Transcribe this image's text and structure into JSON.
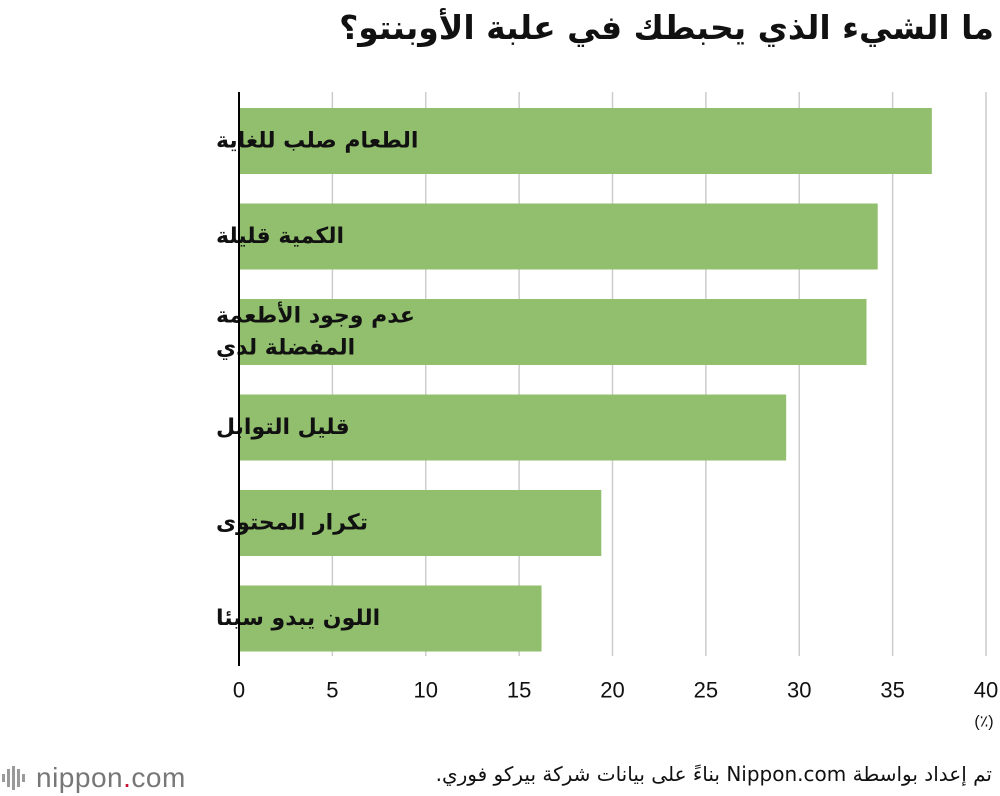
{
  "chart_data": {
    "type": "bar",
    "orientation": "horizontal",
    "title": "ما الشيء الذي يحبطك في علبة الأوبنتو؟",
    "categories": [
      [
        "الطعام صلب للغاية"
      ],
      [
        "الكمية قليلة"
      ],
      [
        "عدم وجود الأطعمة",
        "المفضلة لدي"
      ],
      [
        "قليل التوابل"
      ],
      [
        "تكرار المحتوى"
      ],
      [
        "اللون يبدو سيئا"
      ]
    ],
    "values": [
      37.1,
      34.2,
      33.6,
      29.3,
      19.4,
      16.2
    ],
    "xlim": [
      0,
      40
    ],
    "xticks": [
      0,
      5,
      10,
      15,
      20,
      25,
      30,
      35,
      40
    ],
    "unit": "(٪)",
    "grid": "vertical",
    "bar_color": "#91bf6d",
    "grid_color": "#cccccc"
  },
  "footer": {
    "logo_name": "nippon",
    "logo_dot": ".",
    "logo_tld": "com",
    "logo_icon": "nippon-fan-icon",
    "source": "تم إعداد بواسطة Nippon.com بناءً على بيانات شركة بيركو فوري."
  }
}
